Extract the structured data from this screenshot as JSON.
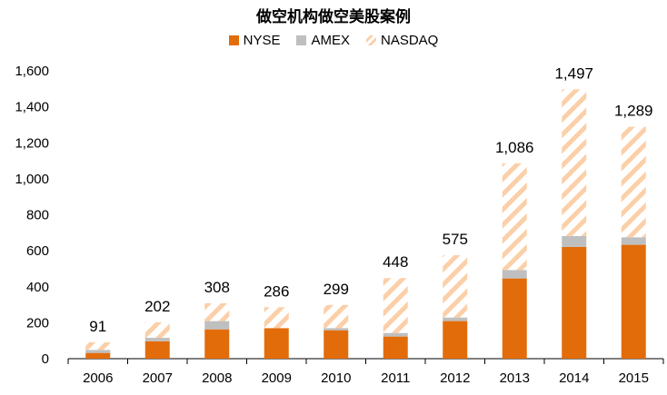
{
  "chart_data": {
    "type": "bar",
    "stacked": true,
    "title": "做空机构做空美股案例",
    "categories": [
      "2006",
      "2007",
      "2008",
      "2009",
      "2010",
      "2011",
      "2012",
      "2013",
      "2014",
      "2015"
    ],
    "series": [
      {
        "name": "NYSE",
        "color": "#e36c0a",
        "values": [
          32,
          97,
          163,
          170,
          158,
          123,
          209,
          446,
          621,
          633
        ]
      },
      {
        "name": "AMEX",
        "color": "#bfbfbf",
        "values": [
          17,
          19,
          46,
          0,
          12,
          20,
          20,
          47,
          61,
          42
        ]
      },
      {
        "name": "NASDAQ",
        "color": "#fbd5b5",
        "pattern": "diagonal-hatch",
        "values": [
          42,
          86,
          99,
          116,
          129,
          305,
          346,
          593,
          815,
          614
        ]
      }
    ],
    "totals": [
      "91",
      "202",
      "308",
      "286",
      "299",
      "448",
      "575",
      "1,086",
      "1,497",
      "1,289"
    ],
    "yticks": [
      "0",
      "200",
      "400",
      "600",
      "800",
      "1,000",
      "1,200",
      "1,400",
      "1,600"
    ],
    "ylim": [
      0,
      1600
    ],
    "grid": false,
    "legend": "top-center",
    "xlabel": "",
    "ylabel": ""
  }
}
